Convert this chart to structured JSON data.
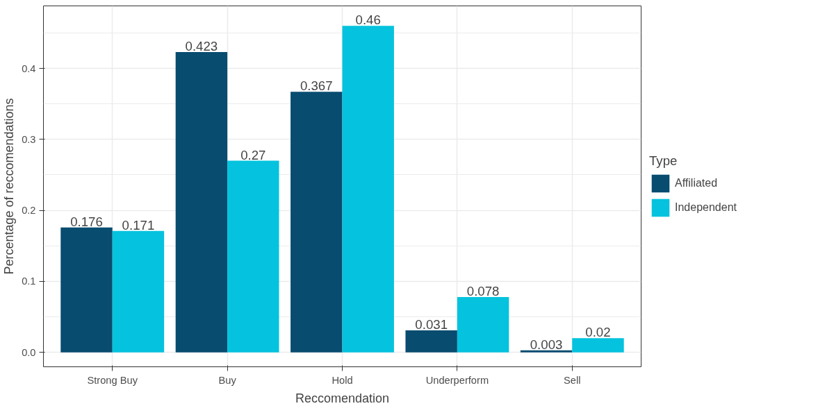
{
  "chart_data": {
    "type": "bar",
    "xlabel": "Reccomendation",
    "ylabel": "Percentage of reccomendations",
    "legend_title": "Type",
    "categories": [
      "Strong Buy",
      "Buy",
      "Hold",
      "Underperform",
      "Sell"
    ],
    "series": [
      {
        "name": "Affiliated",
        "color": "#084c70",
        "values": [
          0.176,
          0.423,
          0.367,
          0.031,
          0.003
        ]
      },
      {
        "name": "Independent",
        "color": "#05c3de",
        "values": [
          0.171,
          0.27,
          0.46,
          0.078,
          0.02
        ]
      }
    ],
    "ylim": [
      -0.0203,
      0.488
    ],
    "yticks": [
      {
        "value": 0,
        "label": "0.0"
      },
      0.1,
      0.2,
      0.3,
      0.4
    ],
    "grid": true,
    "legend": "right",
    "data_labels": true
  }
}
